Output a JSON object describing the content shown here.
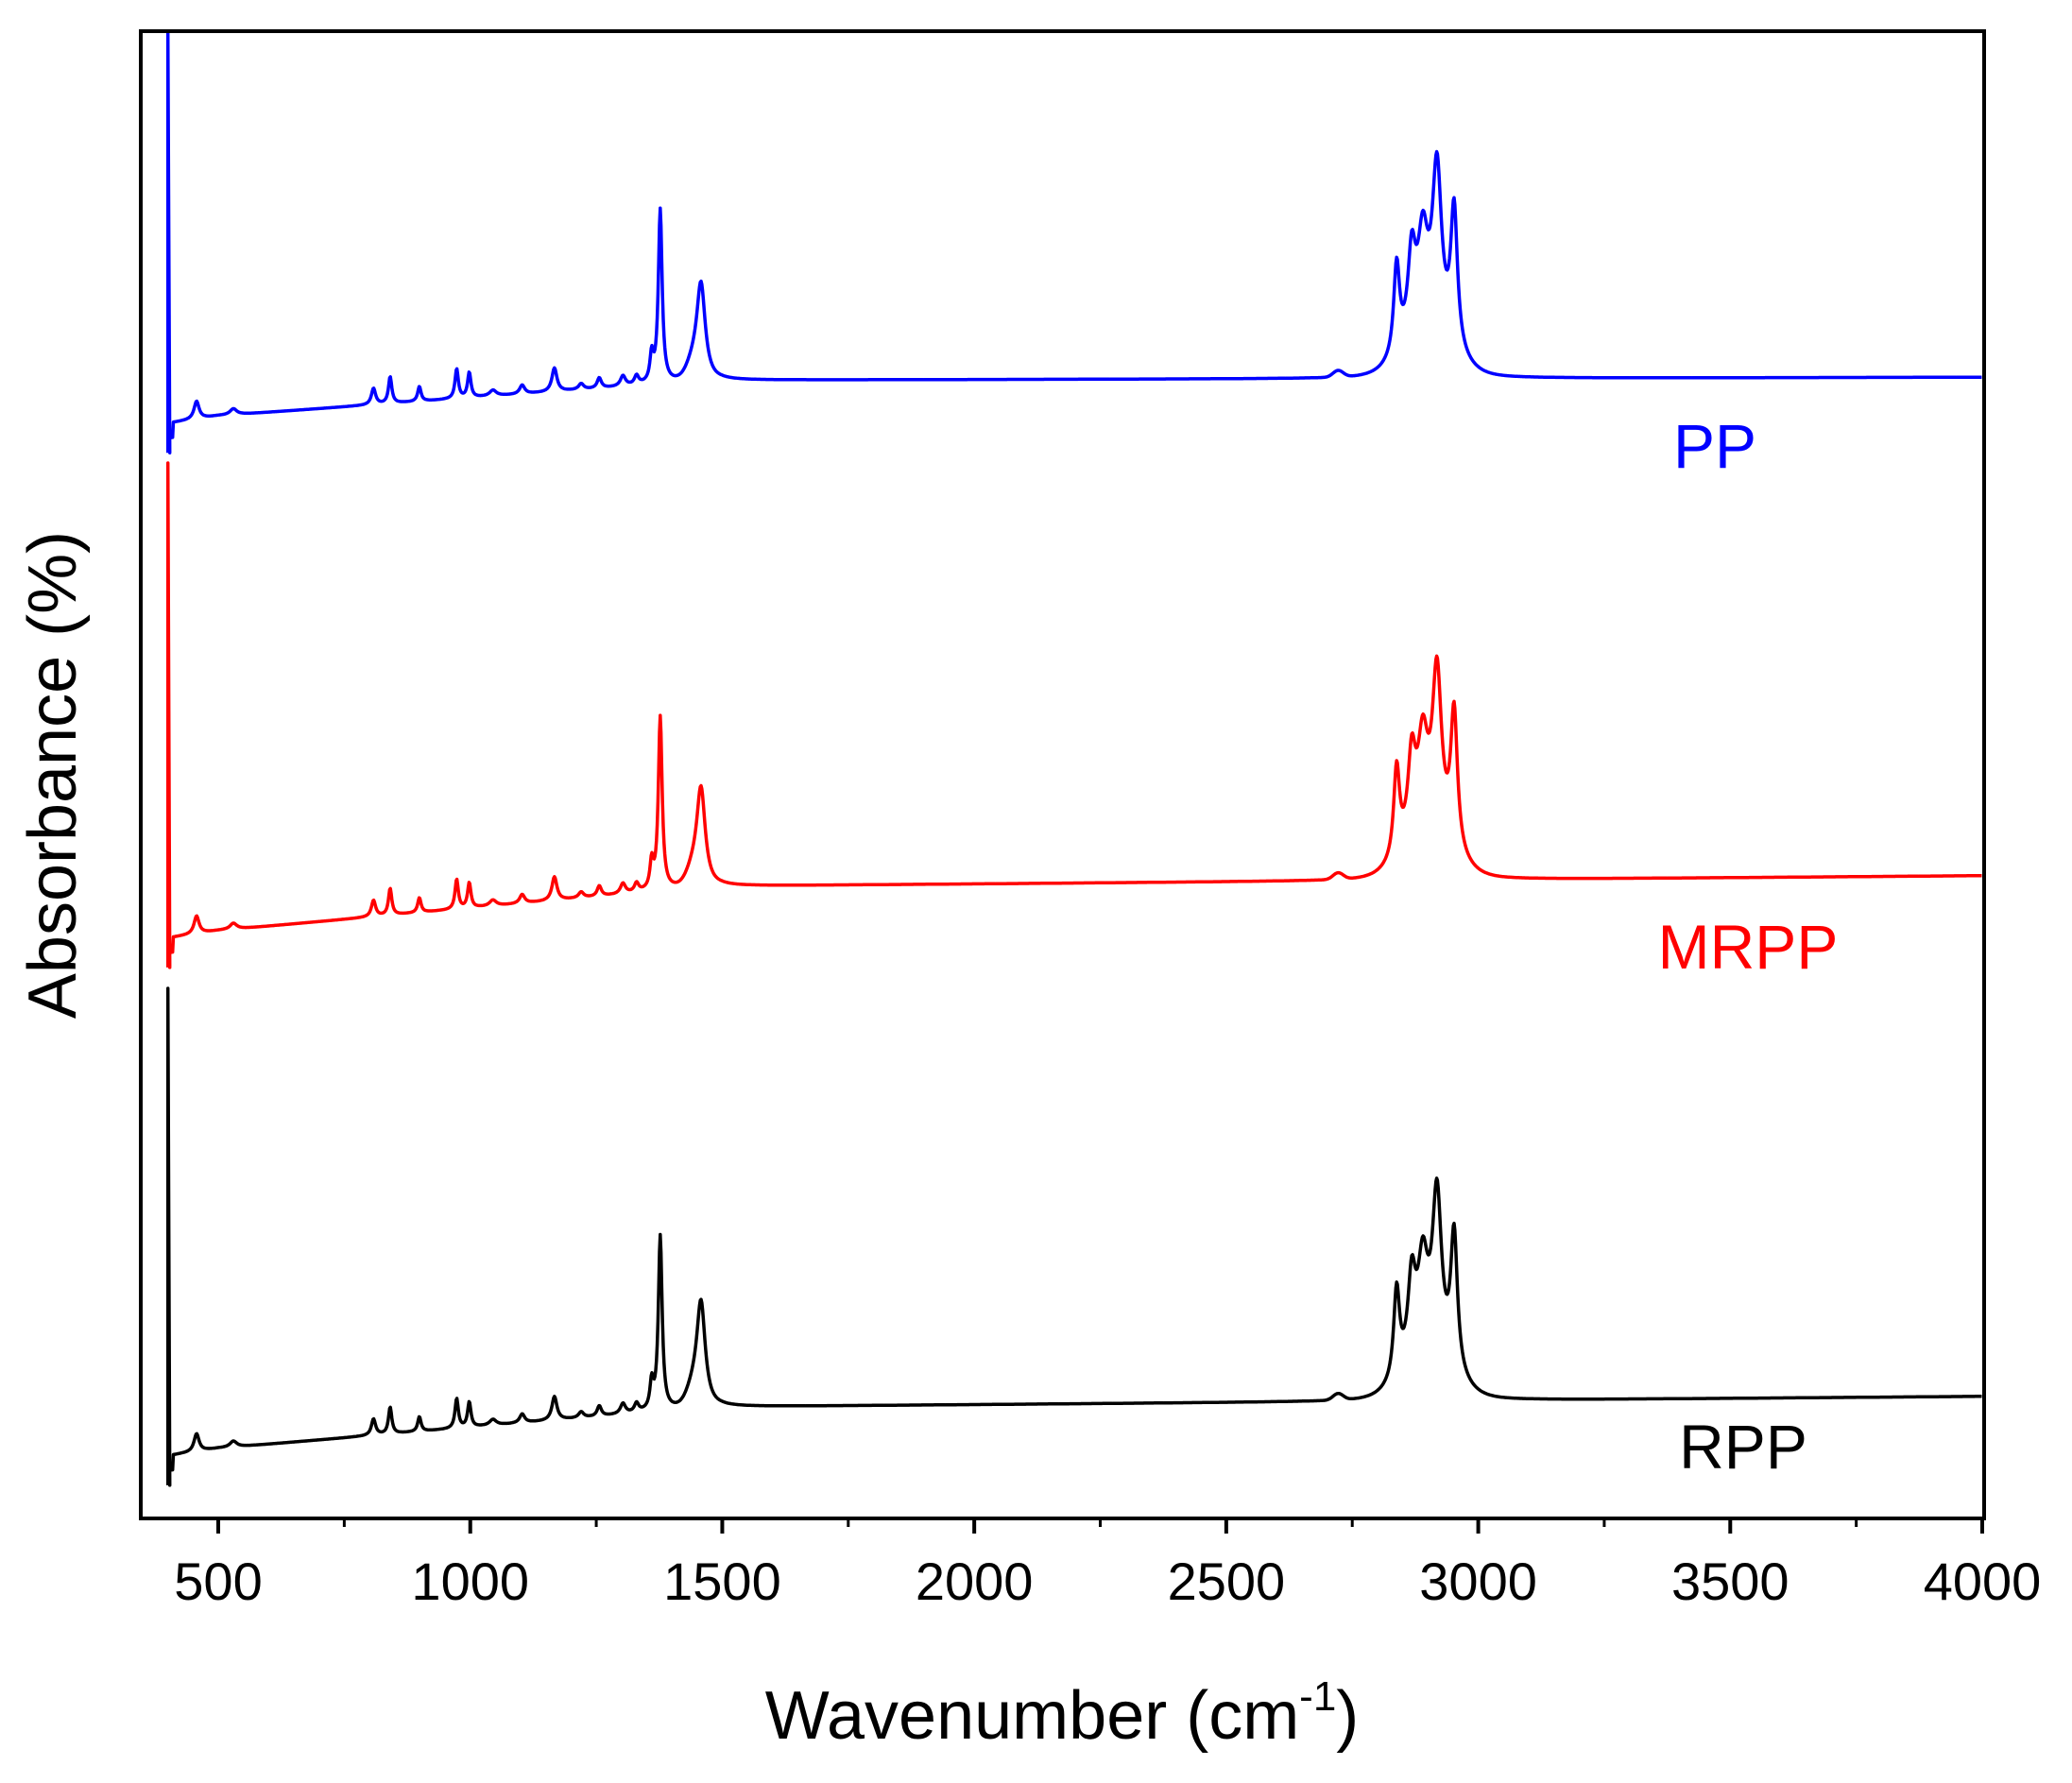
{
  "chart_data": {
    "type": "line",
    "title": "",
    "xlabel_main": "Wavenumber (cm",
    "xlabel_sup": "-1",
    "xlabel_close": ")",
    "ylabel": "Absorbance (%)",
    "xlim": [
      350,
      4000
    ],
    "ylim": [
      0,
      1
    ],
    "x_ticks": [
      500,
      1000,
      1500,
      2000,
      2500,
      3000,
      3500,
      4000
    ],
    "x_minor_ticks": [
      750,
      1250,
      1750,
      2250,
      2750,
      3250,
      3750
    ],
    "y_ticks_visible": false,
    "grid": false,
    "legend": "none; series labels placed next to each curve",
    "series": [
      {
        "name": "PP",
        "color": "#0000ff",
        "baseline_at_500": 0.742,
        "baseline_at_1500": 0.766,
        "baseline_at_4000": 0.768,
        "peaks": [
          {
            "x": 1377,
            "y": 0.88
          },
          {
            "x": 1458,
            "y": 0.836
          },
          {
            "x": 2838,
            "y": 0.846
          },
          {
            "x": 2868,
            "y": 0.848
          },
          {
            "x": 2918,
            "y": 0.92
          },
          {
            "x": 2950,
            "y": 0.88
          }
        ]
      },
      {
        "name": "MRPP",
        "color": "#ff0000",
        "baseline_at_500": 0.395,
        "baseline_at_1500": 0.425,
        "baseline_at_4000": 0.432,
        "peaks": [
          {
            "x": 1377,
            "y": 0.538
          },
          {
            "x": 1458,
            "y": 0.496
          },
          {
            "x": 2838,
            "y": 0.51
          },
          {
            "x": 2868,
            "y": 0.51
          },
          {
            "x": 2918,
            "y": 0.58
          },
          {
            "x": 2950,
            "y": 0.562
          }
        ]
      },
      {
        "name": "RPP",
        "color": "#000000",
        "baseline_at_500": 0.046,
        "baseline_at_1500": 0.074,
        "baseline_at_4000": 0.081,
        "peaks": [
          {
            "x": 1377,
            "y": 0.188
          },
          {
            "x": 1458,
            "y": 0.15
          },
          {
            "x": 2838,
            "y": 0.164
          },
          {
            "x": 2868,
            "y": 0.162
          },
          {
            "x": 2918,
            "y": 0.228
          },
          {
            "x": 2950,
            "y": 0.21
          }
        ]
      }
    ]
  }
}
